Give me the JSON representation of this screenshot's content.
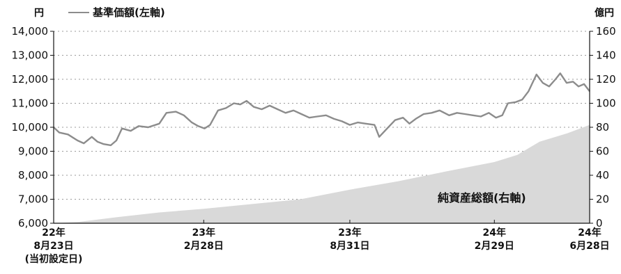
{
  "chart_data": {
    "type": "line",
    "left_axis": {
      "unit": "円",
      "ylim": [
        6000,
        14000
      ],
      "ticks": [
        {
          "value": 6000,
          "label": "6,000"
        },
        {
          "value": 7000,
          "label": "7,000"
        },
        {
          "value": 8000,
          "label": "8,000"
        },
        {
          "value": 9000,
          "label": "9,000"
        },
        {
          "value": 10000,
          "label": "10,000"
        },
        {
          "value": 11000,
          "label": "11,000"
        },
        {
          "value": 12000,
          "label": "12,000"
        },
        {
          "value": 13000,
          "label": "13,000"
        },
        {
          "value": 14000,
          "label": "14,000"
        }
      ]
    },
    "right_axis": {
      "unit": "億円",
      "ylim": [
        0,
        160
      ],
      "ticks": [
        {
          "value": 0,
          "label": "0"
        },
        {
          "value": 20,
          "label": "20"
        },
        {
          "value": 40,
          "label": "40"
        },
        {
          "value": 60,
          "label": "60"
        },
        {
          "value": 80,
          "label": "80"
        },
        {
          "value": 100,
          "label": "100"
        },
        {
          "value": 120,
          "label": "120"
        },
        {
          "value": 140,
          "label": "140"
        },
        {
          "value": 160,
          "label": "160"
        }
      ]
    },
    "x_ticks": [
      {
        "date": "2022-08-23",
        "lines": [
          "22年",
          "8月23日",
          "(当初設定日)"
        ]
      },
      {
        "date": "2023-02-28",
        "lines": [
          "23年",
          "2月28日"
        ]
      },
      {
        "date": "2023-08-31",
        "lines": [
          "23年",
          "8月31日"
        ]
      },
      {
        "date": "2024-02-29",
        "lines": [
          "24年",
          "2月29日"
        ]
      },
      {
        "date": "2024-06-28",
        "lines": [
          "24年",
          "6月28日"
        ]
      }
    ],
    "grid": "horizontal-dotted",
    "series": [
      {
        "name": "基準価額(左軸)",
        "type": "line",
        "axis": "left",
        "color": "#8c8c8c",
        "legend": "top-left",
        "points": [
          [
            "2022-08-23",
            10000
          ],
          [
            "2022-08-30",
            9780
          ],
          [
            "2022-09-10",
            9700
          ],
          [
            "2022-09-22",
            9450
          ],
          [
            "2022-09-30",
            9330
          ],
          [
            "2022-10-10",
            9600
          ],
          [
            "2022-10-17",
            9400
          ],
          [
            "2022-10-25",
            9300
          ],
          [
            "2022-11-03",
            9250
          ],
          [
            "2022-11-10",
            9450
          ],
          [
            "2022-11-17",
            9950
          ],
          [
            "2022-11-28",
            9850
          ],
          [
            "2022-12-08",
            10050
          ],
          [
            "2022-12-20",
            10000
          ],
          [
            "2023-01-03",
            10150
          ],
          [
            "2023-01-12",
            10600
          ],
          [
            "2023-01-24",
            10650
          ],
          [
            "2023-02-03",
            10500
          ],
          [
            "2023-02-13",
            10200
          ],
          [
            "2023-02-21",
            10050
          ],
          [
            "2023-03-01",
            9950
          ],
          [
            "2023-03-08",
            10100
          ],
          [
            "2023-03-18",
            10700
          ],
          [
            "2023-03-28",
            10800
          ],
          [
            "2023-04-07",
            11000
          ],
          [
            "2023-04-15",
            10950
          ],
          [
            "2023-04-23",
            11100
          ],
          [
            "2023-05-02",
            10850
          ],
          [
            "2023-05-12",
            10750
          ],
          [
            "2023-05-22",
            10900
          ],
          [
            "2023-06-01",
            10750
          ],
          [
            "2023-06-11",
            10600
          ],
          [
            "2023-06-21",
            10700
          ],
          [
            "2023-07-01",
            10550
          ],
          [
            "2023-07-11",
            10400
          ],
          [
            "2023-07-21",
            10450
          ],
          [
            "2023-08-01",
            10500
          ],
          [
            "2023-08-11",
            10350
          ],
          [
            "2023-08-21",
            10250
          ],
          [
            "2023-08-31",
            10100
          ],
          [
            "2023-09-10",
            10200
          ],
          [
            "2023-09-20",
            10150
          ],
          [
            "2023-10-01",
            10100
          ],
          [
            "2023-10-07",
            9600
          ],
          [
            "2023-10-17",
            9950
          ],
          [
            "2023-10-27",
            10300
          ],
          [
            "2023-11-06",
            10400
          ],
          [
            "2023-11-14",
            10150
          ],
          [
            "2023-11-22",
            10350
          ],
          [
            "2023-12-02",
            10550
          ],
          [
            "2023-12-12",
            10600
          ],
          [
            "2023-12-22",
            10700
          ],
          [
            "2024-01-03",
            10500
          ],
          [
            "2024-01-13",
            10600
          ],
          [
            "2024-01-23",
            10550
          ],
          [
            "2024-02-02",
            10500
          ],
          [
            "2024-02-12",
            10450
          ],
          [
            "2024-02-22",
            10600
          ],
          [
            "2024-03-02",
            10400
          ],
          [
            "2024-03-10",
            10500
          ],
          [
            "2024-03-17",
            11000
          ],
          [
            "2024-03-27",
            11050
          ],
          [
            "2024-04-04",
            11150
          ],
          [
            "2024-04-12",
            11500
          ],
          [
            "2024-04-22",
            12200
          ],
          [
            "2024-04-30",
            11850
          ],
          [
            "2024-05-08",
            11700
          ],
          [
            "2024-05-16",
            12000
          ],
          [
            "2024-05-22",
            12250
          ],
          [
            "2024-05-30",
            11850
          ],
          [
            "2024-06-07",
            11900
          ],
          [
            "2024-06-14",
            11700
          ],
          [
            "2024-06-21",
            11800
          ],
          [
            "2024-06-28",
            11500
          ]
        ]
      },
      {
        "name": "純資産総額(右軸)",
        "type": "area",
        "axis": "right",
        "color": "#d9d9d9",
        "label_position": "lower-right",
        "points": [
          [
            "2022-08-23",
            0
          ],
          [
            "2022-09-22",
            1
          ],
          [
            "2022-11-10",
            5
          ],
          [
            "2023-01-03",
            9
          ],
          [
            "2023-02-28",
            12
          ],
          [
            "2023-04-30",
            16
          ],
          [
            "2023-06-30",
            20
          ],
          [
            "2023-08-31",
            28
          ],
          [
            "2023-10-31",
            35
          ],
          [
            "2023-12-29",
            43
          ],
          [
            "2024-02-29",
            51
          ],
          [
            "2024-03-29",
            57
          ],
          [
            "2024-04-26",
            68
          ],
          [
            "2024-05-31",
            75
          ],
          [
            "2024-06-28",
            82
          ]
        ]
      }
    ]
  }
}
